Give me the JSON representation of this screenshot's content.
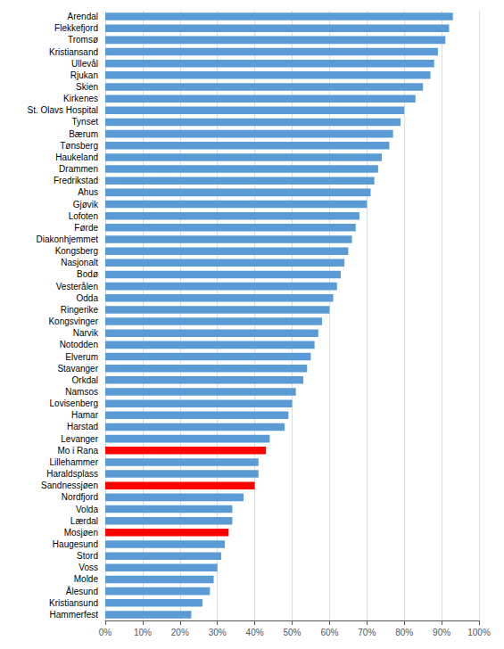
{
  "chart_data": {
    "type": "bar",
    "orientation": "horizontal",
    "categories": [
      "Arendal",
      "Flekkefjord",
      "Tromsø",
      "Kristiansand",
      "Ullevål",
      "Rjukan",
      "Skien",
      "Kirkenes",
      "St. Olavs Hospital",
      "Tynset",
      "Bærum",
      "Tønsberg",
      "Haukeland",
      "Drammen",
      "Fredrikstad",
      "Ahus",
      "Gjøvik",
      "Lofoten",
      "Førde",
      "Diakonhjemmet",
      "Kongsberg",
      "Nasjonalt",
      "Bodø",
      "Vesterålen",
      "Odda",
      "Ringerike",
      "Kongsvinger",
      "Narvik",
      "Notodden",
      "Elverum",
      "Stavanger",
      "Orkdal",
      "Namsos",
      "Lovisenberg",
      "Hamar",
      "Harstad",
      "Levanger",
      "Mo i Rana",
      "Lillehammer",
      "Haraldsplass",
      "Sandnessjøen",
      "Nordfjord",
      "Volda",
      "Lærdal",
      "Mosjøen",
      "Haugesund",
      "Stord",
      "Voss",
      "Molde",
      "Ålesund",
      "Kristiansund",
      "Hammerfest"
    ],
    "values": [
      0.93,
      0.92,
      0.91,
      0.89,
      0.88,
      0.87,
      0.85,
      0.83,
      0.8,
      0.79,
      0.77,
      0.76,
      0.74,
      0.73,
      0.72,
      0.71,
      0.7,
      0.68,
      0.67,
      0.66,
      0.65,
      0.64,
      0.63,
      0.62,
      0.61,
      0.6,
      0.58,
      0.57,
      0.56,
      0.55,
      0.54,
      0.53,
      0.51,
      0.5,
      0.49,
      0.48,
      0.44,
      0.43,
      0.41,
      0.41,
      0.4,
      0.37,
      0.34,
      0.34,
      0.33,
      0.32,
      0.31,
      0.3,
      0.29,
      0.28,
      0.26,
      0.23
    ],
    "colors": [
      "#5B9BD5",
      "#5B9BD5",
      "#5B9BD5",
      "#5B9BD5",
      "#5B9BD5",
      "#5B9BD5",
      "#5B9BD5",
      "#5B9BD5",
      "#5B9BD5",
      "#5B9BD5",
      "#5B9BD5",
      "#5B9BD5",
      "#5B9BD5",
      "#5B9BD5",
      "#5B9BD5",
      "#5B9BD5",
      "#5B9BD5",
      "#5B9BD5",
      "#5B9BD5",
      "#5B9BD5",
      "#5B9BD5",
      "#5B9BD5",
      "#5B9BD5",
      "#5B9BD5",
      "#5B9BD5",
      "#5B9BD5",
      "#5B9BD5",
      "#5B9BD5",
      "#5B9BD5",
      "#5B9BD5",
      "#5B9BD5",
      "#5B9BD5",
      "#5B9BD5",
      "#5B9BD5",
      "#5B9BD5",
      "#5B9BD5",
      "#5B9BD5",
      "#FF0000",
      "#5B9BD5",
      "#5B9BD5",
      "#FF0000",
      "#5B9BD5",
      "#5B9BD5",
      "#5B9BD5",
      "#FF0000",
      "#5B9BD5",
      "#5B9BD5",
      "#5B9BD5",
      "#5B9BD5",
      "#5B9BD5",
      "#5B9BD5",
      "#5B9BD5"
    ],
    "xlim": [
      0,
      1.0
    ],
    "xticks": [
      {
        "value": 0,
        "label": "0%"
      },
      {
        "value": 0.1,
        "label": "10%"
      },
      {
        "value": 0.2,
        "label": "20%"
      },
      {
        "value": 0.3,
        "label": "30%"
      },
      {
        "value": 0.4,
        "label": "40%"
      },
      {
        "value": 0.5,
        "label": "50%"
      },
      {
        "value": 0.6,
        "label": "60%"
      },
      {
        "value": 0.7,
        "label": "70%"
      },
      {
        "value": 0.8,
        "label": "80%"
      },
      {
        "value": 0.9,
        "label": "90%"
      },
      {
        "value": 1.0,
        "label": "100%"
      }
    ],
    "grid": true
  }
}
